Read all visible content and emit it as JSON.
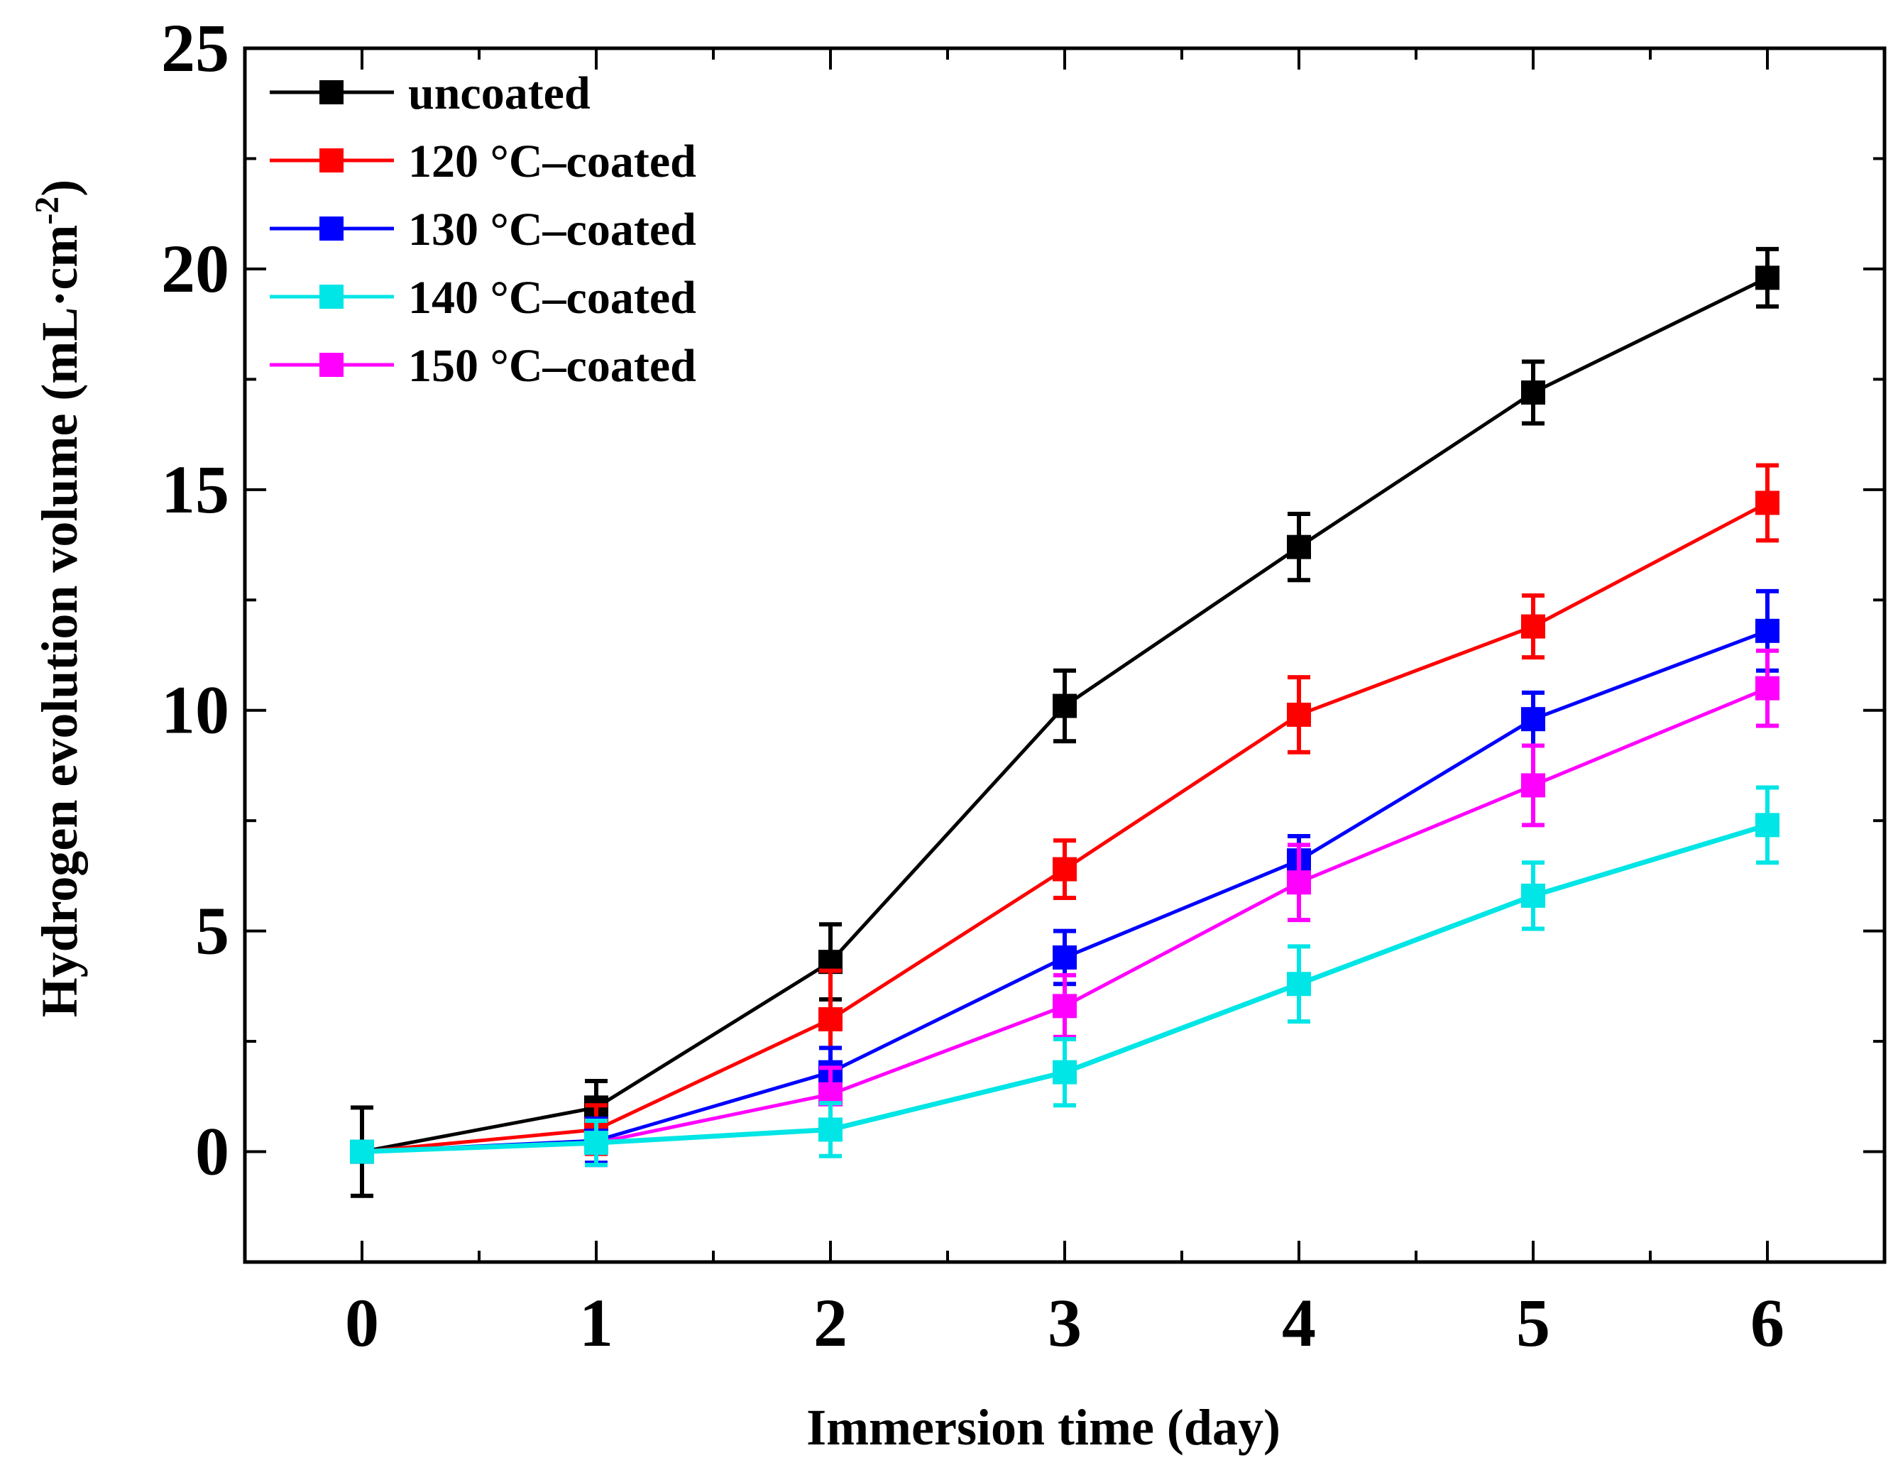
{
  "chart_data": {
    "type": "line",
    "title": "",
    "xlabel": "Immersion time (day)",
    "ylabel": "Hydrogen  evolution volume (mL·cm",
    "ylabel_superscript": "-2",
    "ylabel_close": ")",
    "xlim": [
      -0.5,
      6.5
    ],
    "ylim": [
      -2.5,
      25
    ],
    "x_ticks": [
      0,
      1,
      2,
      3,
      4,
      5,
      6
    ],
    "x_tick_labels": [
      "0",
      "1",
      "2",
      "3",
      "4",
      "5",
      "6"
    ],
    "y_ticks": [
      0,
      5,
      10,
      15,
      20,
      25
    ],
    "y_tick_labels": [
      "0",
      "5",
      "10",
      "15",
      "20",
      "25"
    ],
    "legend_position": "top-left",
    "x": [
      0,
      1,
      2,
      3,
      4,
      5,
      6
    ],
    "series": [
      {
        "name": "uncoated",
        "color": "#000000",
        "values": [
          0,
          1.0,
          4.3,
          10.1,
          13.7,
          17.2,
          19.8
        ],
        "errors": [
          1.0,
          0.6,
          0.85,
          0.8,
          0.75,
          0.7,
          0.65
        ]
      },
      {
        "name": "120 °C–coated",
        "color": "#ff0000",
        "values": [
          0,
          0.5,
          3.0,
          6.4,
          9.9,
          11.9,
          14.7
        ],
        "errors": [
          0,
          0.55,
          1.1,
          0.65,
          0.85,
          0.7,
          0.85
        ]
      },
      {
        "name": "130 °C–coated",
        "color": "#0000ff",
        "values": [
          0,
          0.25,
          1.8,
          4.4,
          6.6,
          9.8,
          11.8
        ],
        "errors": [
          0,
          0.5,
          0.55,
          0.6,
          0.55,
          0.6,
          0.9
        ]
      },
      {
        "name": "140 °C–coated",
        "color": "#00e5e5",
        "values": [
          0,
          0.2,
          0.5,
          1.8,
          3.8,
          5.8,
          7.4
        ],
        "errors": [
          0,
          0.5,
          0.6,
          0.75,
          0.85,
          0.75,
          0.85
        ]
      },
      {
        "name": "150 °C–coated",
        "color": "#ff00ff",
        "values": [
          0,
          0.2,
          1.3,
          3.3,
          6.1,
          8.3,
          10.5
        ],
        "errors": [
          0,
          0.5,
          0.6,
          0.7,
          0.85,
          0.9,
          0.85
        ]
      }
    ]
  }
}
